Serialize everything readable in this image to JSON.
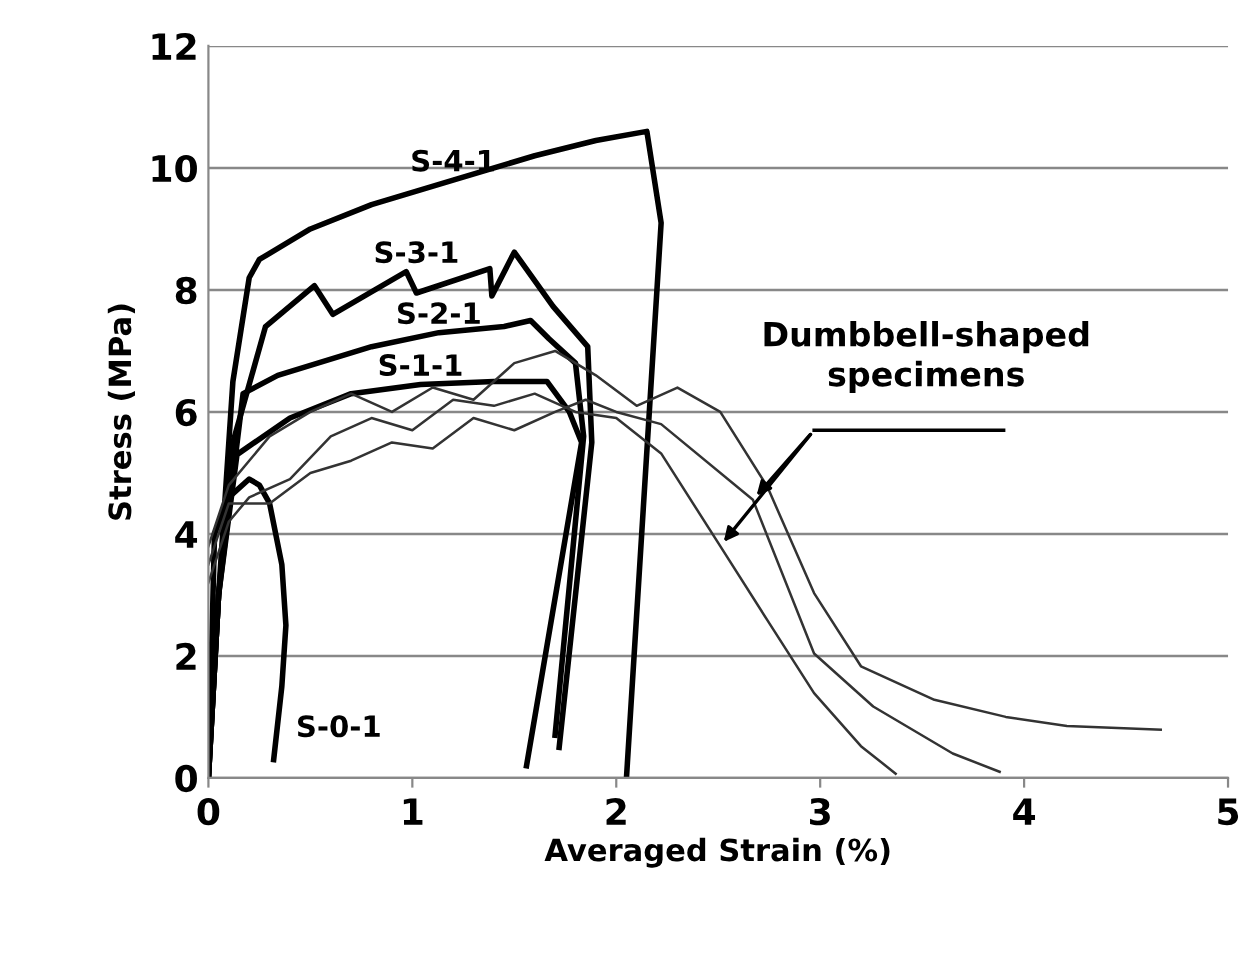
{
  "chart_data": {
    "type": "line",
    "xlabel": "Averaged Strain (%)",
    "ylabel": "Stress (MPa)",
    "xlim": [
      0,
      5
    ],
    "xticks": [
      0,
      1,
      2,
      3,
      4,
      5
    ],
    "ylim": [
      0,
      12
    ],
    "yticks": [
      0,
      2,
      4,
      6,
      8,
      10,
      12
    ],
    "grid": "y",
    "marker": "none",
    "line_style": "solid",
    "series": [
      {
        "name": "S-4-1",
        "color": "#000000",
        "x": [
          0,
          0.05,
          0.12,
          0.2,
          0.25,
          0.3,
          0.5,
          0.8,
          1.2,
          1.6,
          1.9,
          2.15,
          2.22,
          2.05
        ],
        "values": [
          0,
          3,
          6.5,
          8.2,
          8.5,
          8.6,
          9.0,
          9.4,
          9.8,
          10.2,
          10.45,
          10.6,
          9.1,
          0
        ]
      },
      {
        "name": "S-3-1",
        "color": "#000000",
        "x": [
          0,
          0.05,
          0.12,
          0.28,
          0.52,
          0.61,
          0.97,
          1.02,
          1.38,
          1.39,
          1.5,
          1.69,
          1.86,
          1.88,
          1.72
        ],
        "values": [
          0,
          3,
          5.5,
          7.4,
          8.07,
          7.6,
          8.3,
          7.95,
          8.35,
          7.9,
          8.62,
          7.73,
          7.07,
          5.5,
          0.5
        ]
      },
      {
        "name": "S-2-1",
        "color": "#000000",
        "x": [
          0,
          0.05,
          0.17,
          0.34,
          0.8,
          1.13,
          1.45,
          1.58,
          1.67,
          1.8,
          1.84,
          1.7
        ],
        "values": [
          0,
          3,
          6.3,
          6.6,
          7.07,
          7.3,
          7.4,
          7.5,
          7.2,
          6.8,
          5.6,
          0.7
        ]
      },
      {
        "name": "S-1-1",
        "color": "#000000",
        "x": [
          0,
          0.05,
          0.14,
          0.4,
          0.7,
          1.04,
          1.4,
          1.66,
          1.77,
          1.83,
          1.56
        ],
        "values": [
          0,
          3,
          5.3,
          5.9,
          6.3,
          6.45,
          6.5,
          6.5,
          6.0,
          5.5,
          0.2
        ]
      },
      {
        "name": "S-0-1",
        "color": "#000000",
        "x": [
          0,
          0.03,
          0.1,
          0.2,
          0.25,
          0.3,
          0.36,
          0.38,
          0.36,
          0.32
        ],
        "values": [
          0,
          4,
          4.6,
          4.9,
          4.8,
          4.5,
          3.5,
          2.5,
          1.5,
          0.3
        ]
      },
      {
        "color": "#333333",
        "x": [
          0,
          0.1,
          0.2,
          0.4,
          0.6,
          0.8,
          1.0,
          1.2,
          1.4,
          1.6,
          1.8,
          2.0,
          2.22,
          2.51,
          2.74,
          2.97,
          3.2,
          3.37
        ],
        "values": [
          3.2,
          4.2,
          4.6,
          4.9,
          5.6,
          5.9,
          5.7,
          6.2,
          6.1,
          6.3,
          6.0,
          5.9,
          5.32,
          3.8,
          2.59,
          1.39,
          0.52,
          0.07
        ]
      },
      {
        "color": "#333333",
        "x": [
          0,
          0.1,
          0.3,
          0.5,
          0.7,
          0.9,
          1.1,
          1.3,
          1.5,
          1.7,
          1.85,
          2.0,
          2.22,
          2.67,
          2.97,
          3.26,
          3.65,
          3.88
        ],
        "values": [
          3.5,
          4.5,
          4.5,
          5.0,
          5.2,
          5.5,
          5.4,
          5.9,
          5.7,
          6.0,
          6.2,
          6.0,
          5.8,
          4.56,
          2.04,
          1.17,
          0.4,
          0.1
        ]
      },
      {
        "color": "#333333",
        "x": [
          0,
          0.1,
          0.3,
          0.5,
          0.7,
          0.9,
          1.1,
          1.3,
          1.5,
          1.7,
          1.9,
          2.1,
          2.3,
          2.51,
          2.74,
          2.97,
          3.2,
          3.56,
          3.91,
          4.21,
          4.67
        ],
        "values": [
          3.8,
          4.8,
          5.6,
          6.0,
          6.3,
          6.0,
          6.4,
          6.2,
          6.8,
          7.0,
          6.6,
          6.1,
          6.4,
          6.0,
          4.78,
          3.03,
          1.83,
          1.28,
          1.0,
          0.85,
          0.79
        ]
      }
    ],
    "annotations": [
      "Dumbbell-shaped\nspecimens"
    ]
  }
}
